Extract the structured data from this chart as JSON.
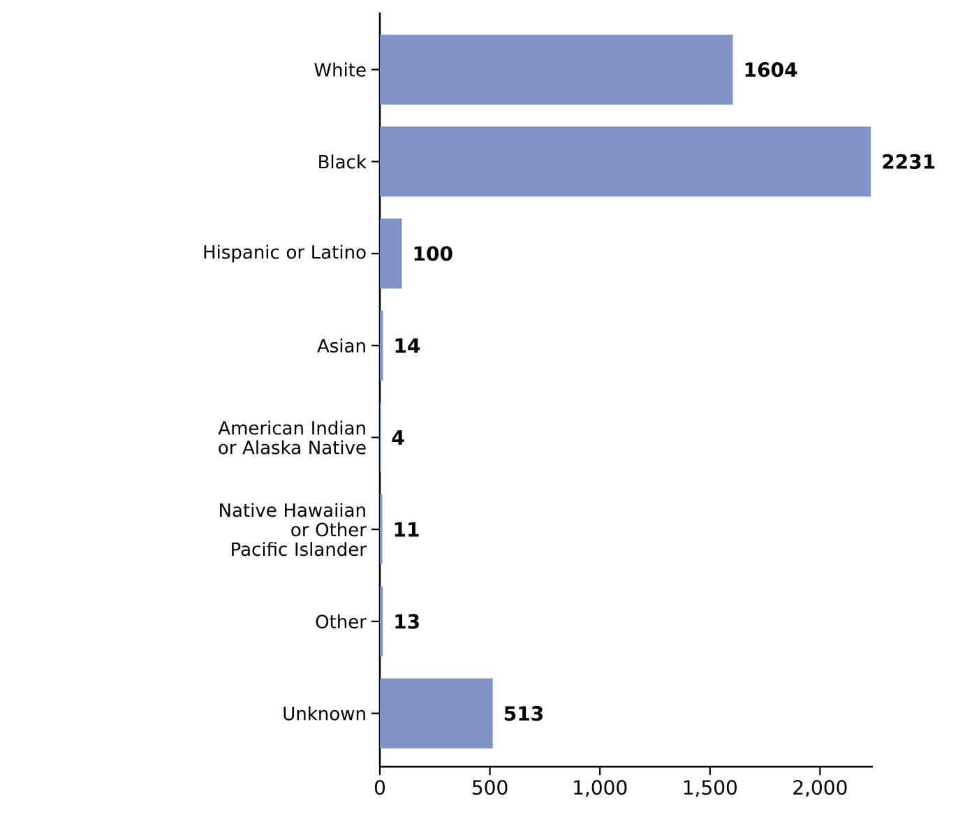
{
  "chart_data": {
    "type": "bar",
    "orientation": "horizontal",
    "categories": [
      "White",
      "Black",
      "Hispanic or Latino",
      "Asian",
      "American Indian or Alaska Native",
      "Native Hawaiian or Other Pacific Islander",
      "Other",
      "Unknown"
    ],
    "values": [
      1604,
      2231,
      100,
      14,
      4,
      11,
      13,
      513
    ],
    "color": "#7f93c9",
    "xlim": [
      0,
      2240
    ],
    "xticks": [
      0,
      500,
      {
        "value": 1000,
        "label": "1,000"
      },
      {
        "value": 1500,
        "label": "1,500"
      },
      {
        "value": 2000,
        "label": "2,000"
      }
    ],
    "data_labels": true,
    "grid": false
  }
}
